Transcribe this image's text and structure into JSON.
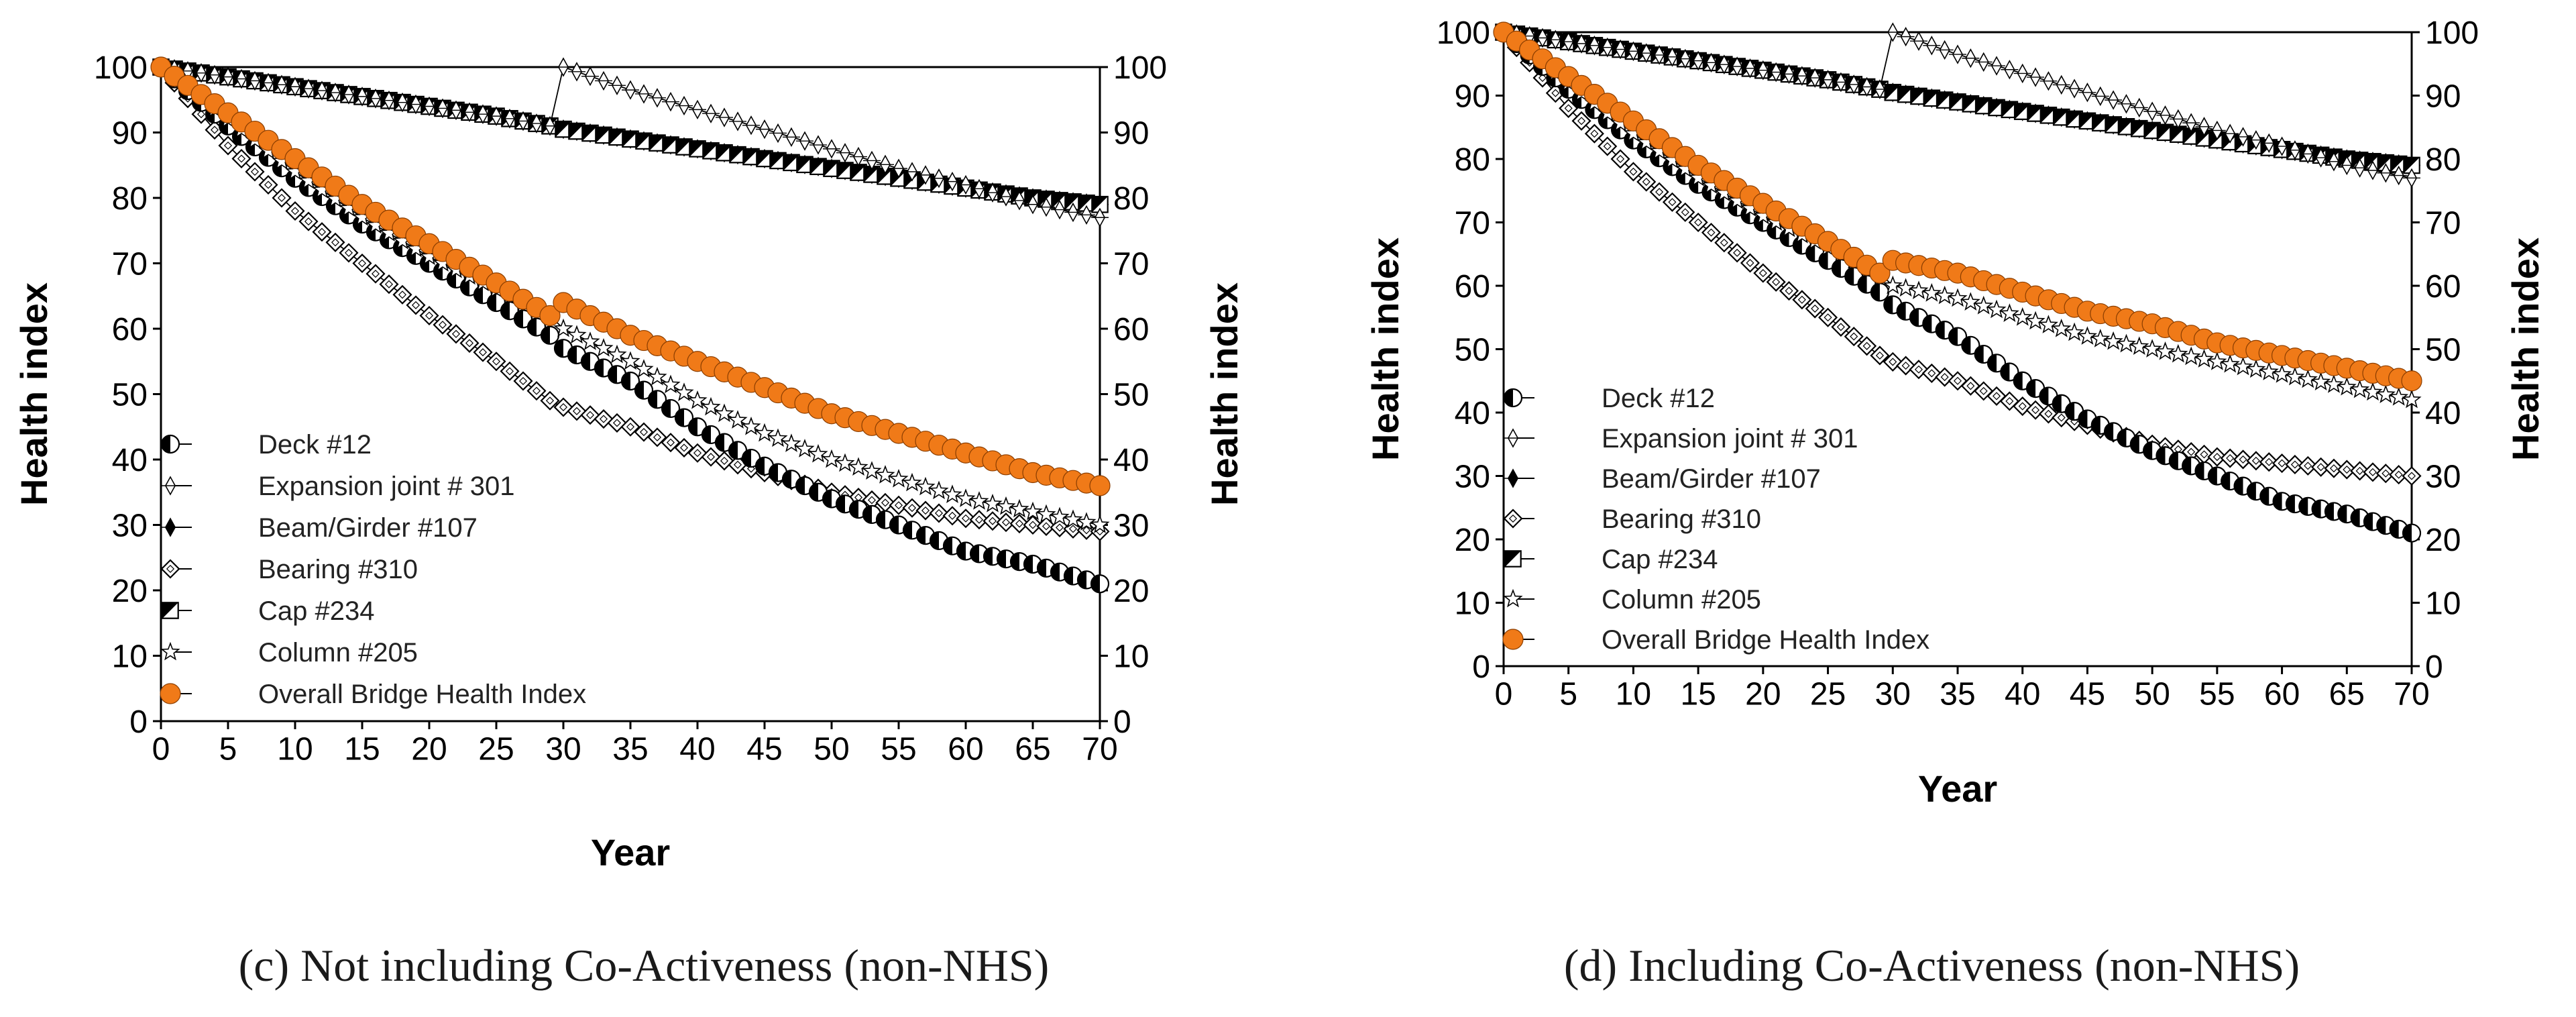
{
  "colors": {
    "orange": "#F07A18",
    "black": "#000000",
    "white": "#ffffff"
  },
  "panels": {
    "c": {
      "caption": "(c) Not including Co-Activeness (non-NHS)"
    },
    "d": {
      "caption": "(d) Including Co-Activeness (non-NHS)"
    }
  },
  "chart_data": [
    {
      "type": "line",
      "title": "",
      "xlabel": "Year",
      "ylabel": "Health index",
      "y2label": "Health index",
      "xlim": [
        0,
        70
      ],
      "ylim": [
        0,
        100
      ],
      "x_ticks": [
        "0",
        "5",
        "10",
        "15",
        "20",
        "25",
        "30",
        "35",
        "40",
        "45",
        "50",
        "55",
        "60",
        "65",
        "70"
      ],
      "y_ticks": [
        "0",
        "10",
        "20",
        "30",
        "40",
        "50",
        "60",
        "70",
        "80",
        "90",
        "100"
      ],
      "y2_ticks": [
        "0",
        "10",
        "20",
        "30",
        "40",
        "50",
        "60",
        "70",
        "80",
        "90",
        "100"
      ],
      "legend_position": "bottom-left",
      "series": [
        {
          "name": "Deck #12",
          "marker": "half-circle",
          "points": [
            [
              0,
              100
            ],
            [
              5,
              91
            ],
            [
              10,
              83
            ],
            [
              15,
              76
            ],
            [
              20,
              70
            ],
            [
              25,
              64
            ],
            [
              29,
              59
            ],
            [
              30,
              57
            ],
            [
              35,
              52
            ],
            [
              40,
              45
            ],
            [
              45,
              39
            ],
            [
              50,
              34
            ],
            [
              55,
              30
            ],
            [
              60,
              26
            ],
            [
              65,
              24
            ],
            [
              70,
              21
            ]
          ]
        },
        {
          "name": "Expansion joint # 301",
          "marker": "hollow-pin",
          "points": [
            [
              0,
              100
            ],
            [
              5,
              98.5
            ],
            [
              10,
              97
            ],
            [
              15,
              95.5
            ],
            [
              20,
              94
            ],
            [
              25,
              92.5
            ],
            [
              29,
              91
            ],
            [
              30,
              100
            ],
            [
              35,
              96.5
            ],
            [
              40,
              93.5
            ],
            [
              45,
              90.5
            ],
            [
              50,
              87.5
            ],
            [
              55,
              84.5
            ],
            [
              60,
              82
            ],
            [
              65,
              79
            ],
            [
              70,
              77
            ]
          ]
        },
        {
          "name": "Beam/Girder #107",
          "marker": "filled-pin",
          "points": [
            [
              0,
              100
            ],
            [
              5,
              98.5
            ],
            [
              10,
              97
            ],
            [
              15,
              95.5
            ],
            [
              20,
              94
            ],
            [
              25,
              92.5
            ],
            [
              29,
              91
            ],
            [
              30,
              90.5
            ],
            [
              35,
              89
            ],
            [
              40,
              87.5
            ],
            [
              45,
              86
            ],
            [
              50,
              84.5
            ],
            [
              55,
              83
            ],
            [
              60,
              81.5
            ],
            [
              65,
              80
            ],
            [
              70,
              79
            ]
          ]
        },
        {
          "name": "Bearing #310",
          "marker": "diamond",
          "points": [
            [
              0,
              100
            ],
            [
              5,
              88
            ],
            [
              10,
              78
            ],
            [
              15,
              70
            ],
            [
              20,
              62
            ],
            [
              25,
              55
            ],
            [
              29,
              49
            ],
            [
              30,
              48
            ],
            [
              35,
              45
            ],
            [
              40,
              41
            ],
            [
              45,
              38
            ],
            [
              50,
              35
            ],
            [
              55,
              33
            ],
            [
              60,
              31
            ],
            [
              65,
              30
            ],
            [
              70,
              29
            ]
          ]
        },
        {
          "name": "Cap #234",
          "marker": "half-square",
          "points": [
            [
              0,
              100
            ],
            [
              5,
              98.5
            ],
            [
              10,
              97
            ],
            [
              15,
              95.5
            ],
            [
              20,
              94
            ],
            [
              25,
              92.5
            ],
            [
              29,
              91
            ],
            [
              30,
              90.5
            ],
            [
              35,
              89
            ],
            [
              40,
              87.5
            ],
            [
              45,
              86
            ],
            [
              50,
              84.5
            ],
            [
              55,
              83
            ],
            [
              60,
              81.5
            ],
            [
              65,
              80
            ],
            [
              70,
              79
            ]
          ]
        },
        {
          "name": "Column #205",
          "marker": "star",
          "points": [
            [
              0,
              100
            ],
            [
              5,
              92
            ],
            [
              10,
              84
            ],
            [
              15,
              77
            ],
            [
              20,
              71
            ],
            [
              25,
              66
            ],
            [
              29,
              62
            ],
            [
              30,
              60
            ],
            [
              35,
              55
            ],
            [
              40,
              49
            ],
            [
              45,
              44
            ],
            [
              50,
              40
            ],
            [
              55,
              37
            ],
            [
              60,
              34
            ],
            [
              65,
              32
            ],
            [
              70,
              30
            ]
          ]
        },
        {
          "name": "Overall Bridge Health Index",
          "marker": "orange-circle",
          "points": [
            [
              0,
              100
            ],
            [
              5,
              93
            ],
            [
              10,
              86
            ],
            [
              15,
              79
            ],
            [
              20,
              73
            ],
            [
              25,
              67
            ],
            [
              29,
              62
            ],
            [
              30,
              64
            ],
            [
              35,
              59
            ],
            [
              40,
              55
            ],
            [
              45,
              51
            ],
            [
              50,
              47
            ],
            [
              55,
              44
            ],
            [
              60,
              41
            ],
            [
              65,
              38
            ],
            [
              70,
              36
            ]
          ]
        }
      ]
    },
    {
      "type": "line",
      "title": "",
      "xlabel": "Year",
      "ylabel": "Health index",
      "y2label": "Health index",
      "xlim": [
        0,
        70
      ],
      "ylim": [
        0,
        100
      ],
      "x_ticks": [
        "0",
        "5",
        "10",
        "15",
        "20",
        "25",
        "30",
        "35",
        "40",
        "45",
        "50",
        "55",
        "60",
        "65",
        "70"
      ],
      "y_ticks": [
        "0",
        "10",
        "20",
        "30",
        "40",
        "50",
        "60",
        "70",
        "80",
        "90",
        "100"
      ],
      "y2_ticks": [
        "0",
        "10",
        "20",
        "30",
        "40",
        "50",
        "60",
        "70",
        "80",
        "90",
        "100"
      ],
      "legend_position": "bottom-left",
      "series": [
        {
          "name": "Deck #12",
          "marker": "half-circle",
          "points": [
            [
              0,
              100
            ],
            [
              5,
              91
            ],
            [
              10,
              83
            ],
            [
              15,
              76
            ],
            [
              20,
              70
            ],
            [
              25,
              64
            ],
            [
              29,
              59
            ],
            [
              30,
              57
            ],
            [
              35,
              52
            ],
            [
              40,
              45
            ],
            [
              45,
              39
            ],
            [
              50,
              34
            ],
            [
              55,
              30
            ],
            [
              60,
              26
            ],
            [
              65,
              24
            ],
            [
              70,
              21
            ]
          ]
        },
        {
          "name": "Expansion joint # 301",
          "marker": "hollow-pin",
          "points": [
            [
              0,
              100
            ],
            [
              5,
              98.5
            ],
            [
              10,
              97
            ],
            [
              15,
              95.5
            ],
            [
              20,
              94
            ],
            [
              25,
              92.5
            ],
            [
              29,
              91
            ],
            [
              30,
              100
            ],
            [
              35,
              96.5
            ],
            [
              40,
              93.5
            ],
            [
              45,
              90.5
            ],
            [
              50,
              87.5
            ],
            [
              55,
              84.5
            ],
            [
              60,
              82
            ],
            [
              65,
              79
            ],
            [
              70,
              77
            ]
          ]
        },
        {
          "name": "Beam/Girder #107",
          "marker": "filled-pin",
          "points": [
            [
              0,
              100
            ],
            [
              5,
              98.5
            ],
            [
              10,
              97
            ],
            [
              15,
              95.5
            ],
            [
              20,
              94
            ],
            [
              25,
              92.5
            ],
            [
              29,
              91
            ],
            [
              30,
              90.5
            ],
            [
              35,
              89
            ],
            [
              40,
              87.5
            ],
            [
              45,
              86
            ],
            [
              50,
              84.5
            ],
            [
              55,
              83
            ],
            [
              60,
              81.5
            ],
            [
              65,
              80
            ],
            [
              70,
              79
            ]
          ]
        },
        {
          "name": "Bearing #310",
          "marker": "diamond",
          "points": [
            [
              0,
              100
            ],
            [
              5,
              88
            ],
            [
              10,
              78
            ],
            [
              15,
              70
            ],
            [
              20,
              62
            ],
            [
              25,
              55
            ],
            [
              29,
              49
            ],
            [
              30,
              48
            ],
            [
              35,
              45
            ],
            [
              40,
              41
            ],
            [
              45,
              38
            ],
            [
              50,
              35
            ],
            [
              55,
              33
            ],
            [
              60,
              32
            ],
            [
              65,
              31
            ],
            [
              70,
              30
            ]
          ]
        },
        {
          "name": "Cap #234",
          "marker": "half-square",
          "points": [
            [
              0,
              100
            ],
            [
              5,
              98.5
            ],
            [
              10,
              97
            ],
            [
              15,
              95.5
            ],
            [
              20,
              94
            ],
            [
              25,
              92.5
            ],
            [
              29,
              91
            ],
            [
              30,
              90.5
            ],
            [
              35,
              89
            ],
            [
              40,
              87.5
            ],
            [
              45,
              86
            ],
            [
              50,
              84.5
            ],
            [
              55,
              83
            ],
            [
              60,
              81.5
            ],
            [
              65,
              80
            ],
            [
              70,
              79
            ]
          ]
        },
        {
          "name": "Column #205",
          "marker": "star",
          "points": [
            [
              0,
              100
            ],
            [
              5,
              92
            ],
            [
              10,
              84
            ],
            [
              15,
              77
            ],
            [
              20,
              71
            ],
            [
              25,
              66
            ],
            [
              29,
              62
            ],
            [
              30,
              60
            ],
            [
              35,
              58
            ],
            [
              40,
              55
            ],
            [
              45,
              52
            ],
            [
              50,
              50
            ],
            [
              55,
              48
            ],
            [
              60,
              46
            ],
            [
              65,
              44
            ],
            [
              70,
              42
            ]
          ]
        },
        {
          "name": "Overall Bridge Health Index",
          "marker": "orange-circle",
          "points": [
            [
              0,
              100
            ],
            [
              5,
              93
            ],
            [
              10,
              86
            ],
            [
              15,
              79
            ],
            [
              20,
              73
            ],
            [
              25,
              67
            ],
            [
              29,
              62
            ],
            [
              30,
              64
            ],
            [
              35,
              62
            ],
            [
              40,
              59
            ],
            [
              45,
              56
            ],
            [
              50,
              54
            ],
            [
              55,
              51
            ],
            [
              60,
              49
            ],
            [
              65,
              47
            ],
            [
              70,
              45
            ]
          ]
        }
      ]
    }
  ]
}
